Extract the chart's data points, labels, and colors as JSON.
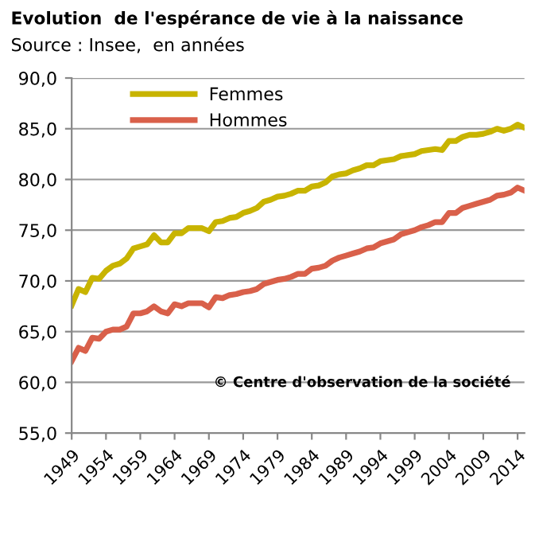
{
  "chart_data": {
    "type": "line",
    "title": "Evolution  de l'espérance de vie à la naissance",
    "subtitle": "Source : Insee,  en années",
    "x": [
      1949,
      1950,
      1951,
      1952,
      1953,
      1954,
      1955,
      1956,
      1957,
      1958,
      1959,
      1960,
      1961,
      1962,
      1963,
      1964,
      1965,
      1966,
      1967,
      1968,
      1969,
      1970,
      1971,
      1972,
      1973,
      1974,
      1975,
      1976,
      1977,
      1978,
      1979,
      1980,
      1981,
      1982,
      1983,
      1984,
      1985,
      1986,
      1987,
      1988,
      1989,
      1990,
      1991,
      1992,
      1993,
      1994,
      1995,
      1996,
      1997,
      1998,
      1999,
      2000,
      2001,
      2002,
      2003,
      2004,
      2005,
      2006,
      2007,
      2008,
      2009,
      2010,
      2011,
      2012,
      2013,
      2014,
      2015
    ],
    "series": [
      {
        "name": "Femmes",
        "color": "#c8b400",
        "values": [
          67.6,
          69.2,
          68.9,
          70.3,
          70.2,
          71.0,
          71.5,
          71.7,
          72.2,
          73.2,
          73.4,
          73.6,
          74.5,
          73.8,
          73.8,
          74.7,
          74.7,
          75.2,
          75.2,
          75.2,
          74.9,
          75.8,
          75.9,
          76.2,
          76.3,
          76.7,
          76.9,
          77.2,
          77.8,
          78.0,
          78.3,
          78.4,
          78.6,
          78.9,
          78.9,
          79.3,
          79.4,
          79.7,
          80.3,
          80.5,
          80.6,
          80.9,
          81.1,
          81.4,
          81.4,
          81.8,
          81.9,
          82.0,
          82.3,
          82.4,
          82.5,
          82.8,
          82.9,
          83.0,
          82.9,
          83.8,
          83.8,
          84.2,
          84.4,
          84.4,
          84.5,
          84.7,
          85.0,
          84.8,
          85.0,
          85.4,
          85.1
        ]
      },
      {
        "name": "Hommes",
        "color": "#d9604a",
        "values": [
          62.1,
          63.4,
          63.1,
          64.4,
          64.3,
          65.0,
          65.2,
          65.2,
          65.5,
          66.8,
          66.8,
          67.0,
          67.5,
          67.0,
          66.8,
          67.7,
          67.5,
          67.8,
          67.8,
          67.8,
          67.4,
          68.4,
          68.3,
          68.6,
          68.7,
          68.9,
          69.0,
          69.2,
          69.7,
          69.9,
          70.1,
          70.2,
          70.4,
          70.7,
          70.7,
          71.2,
          71.3,
          71.5,
          72.0,
          72.3,
          72.5,
          72.7,
          72.9,
          73.2,
          73.3,
          73.7,
          73.9,
          74.1,
          74.6,
          74.8,
          75.0,
          75.3,
          75.5,
          75.8,
          75.8,
          76.7,
          76.7,
          77.2,
          77.4,
          77.6,
          77.8,
          78.0,
          78.4,
          78.5,
          78.7,
          79.2,
          78.9
        ]
      }
    ],
    "xlim": [
      1949,
      2015
    ],
    "xticks": [
      1949,
      1954,
      1959,
      1964,
      1969,
      1974,
      1979,
      1984,
      1989,
      1994,
      1999,
      2004,
      2009,
      2014
    ],
    "ylim": [
      55,
      90
    ],
    "yticks": [
      {
        "value": 55,
        "label": "55,0"
      },
      {
        "value": 60,
        "label": "60,0"
      },
      {
        "value": 65,
        "label": "65,0"
      },
      {
        "value": 70,
        "label": "70,0"
      },
      {
        "value": 75,
        "label": "75,0"
      },
      {
        "value": 80,
        "label": "80,0"
      },
      {
        "value": 85,
        "label": "85,0"
      },
      {
        "value": 90,
        "label": "90,0"
      }
    ],
    "grid": "y",
    "legend": "top left",
    "marker": "none",
    "line_style": "solid",
    "annotations": [
      "© Centre d'observation de la société"
    ]
  }
}
